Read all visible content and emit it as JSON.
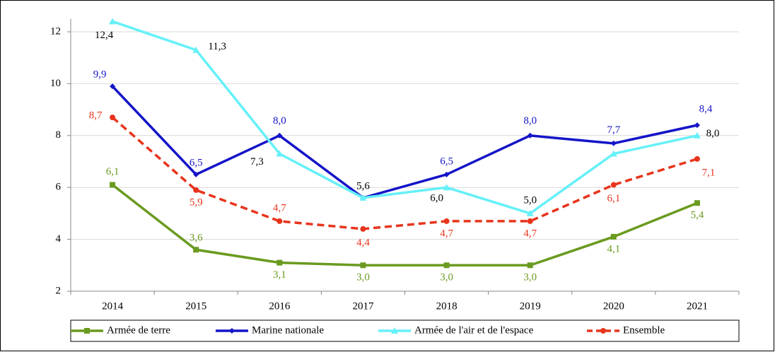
{
  "chart_data": {
    "type": "line",
    "categories": [
      "2014",
      "2015",
      "2016",
      "2017",
      "2018",
      "2019",
      "2020",
      "2021"
    ],
    "series": [
      {
        "name": "Armée de terre",
        "color": "#6a9a1f",
        "marker": "square",
        "dash": false,
        "values": [
          6.1,
          3.6,
          3.1,
          3.0,
          3.0,
          3.0,
          4.1,
          5.4
        ],
        "value_labels": [
          "6,1",
          "3,6",
          "3,1",
          "3,0",
          "3,0",
          "3,0",
          "4,1",
          "5,4"
        ],
        "label_color": "#6a9a1f"
      },
      {
        "name": "Marine nationale",
        "color": "#1414c8",
        "marker": "diamond",
        "dash": false,
        "values": [
          9.9,
          6.5,
          8.0,
          5.6,
          6.5,
          8.0,
          7.7,
          8.4
        ],
        "value_labels": [
          "9,9",
          "6,5",
          "8,0",
          null,
          "6,5",
          "8,0",
          "7,7",
          "8,4"
        ],
        "label_color": "#1414c8"
      },
      {
        "name": "Armée de l'air et de l'espace",
        "color": "#66f0f8",
        "marker": "triangle",
        "dash": false,
        "values": [
          12.4,
          11.3,
          7.3,
          5.6,
          6.0,
          5.0,
          7.3,
          8.0
        ],
        "value_labels": [
          "12,4",
          "11,3",
          "7,3",
          "5,6",
          "6,0",
          "5,0",
          null,
          "8,0"
        ],
        "label_color": "#000000"
      },
      {
        "name": "Ensemble",
        "color": "#e8341c",
        "marker": "circle",
        "dash": true,
        "values": [
          8.7,
          5.9,
          4.7,
          4.4,
          4.7,
          4.7,
          6.1,
          7.1
        ],
        "value_labels": [
          "8,7",
          "5,9",
          "4,7",
          "4,4",
          "4,7",
          "4,7",
          "6,1",
          "7,1"
        ],
        "label_color": "#e8341c"
      }
    ],
    "ylim": [
      2,
      12.5
    ],
    "yticks": [
      2,
      4,
      6,
      8,
      10,
      12
    ],
    "grid": true,
    "legend": "bottom"
  }
}
